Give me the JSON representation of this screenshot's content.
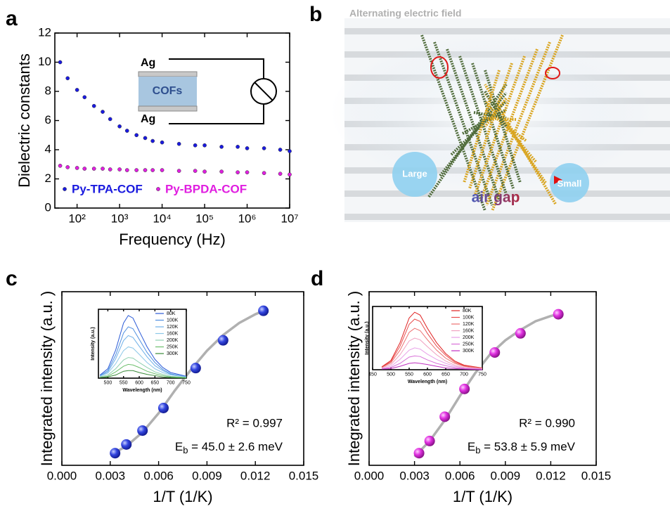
{
  "chart_data": [
    {
      "type": "scatter",
      "label": "a",
      "xscale": "log",
      "xlabel": "Frequency (Hz)",
      "ylabel": "Dielectric constants",
      "xlim": [
        30,
        10000000
      ],
      "ylim": [
        0,
        12
      ],
      "xticks": [
        {
          "value": 100,
          "label": "10²"
        },
        {
          "value": 1000,
          "label": "10³"
        },
        {
          "value": 10000,
          "label": "10⁴"
        },
        {
          "value": 100000,
          "label": "10⁵"
        },
        {
          "value": 1000000,
          "label": "10⁶"
        },
        {
          "value": 10000000,
          "label": "10⁷"
        }
      ],
      "yticks": [
        0,
        2,
        4,
        6,
        8,
        10,
        12
      ],
      "x": [
        40,
        60,
        100,
        150,
        250,
        400,
        600,
        1000,
        1500,
        2500,
        4000,
        6000,
        10000,
        25000,
        60000,
        100000,
        250000,
        600000,
        1000000,
        2500000,
        6000000,
        10000000
      ],
      "series": [
        {
          "name": "Py-TPA-COF",
          "color": "#1a1adf",
          "values": [
            10.0,
            8.9,
            8.1,
            7.6,
            7.0,
            6.6,
            6.1,
            5.6,
            5.3,
            5.0,
            4.8,
            4.6,
            4.5,
            4.4,
            4.3,
            4.3,
            4.2,
            4.2,
            4.1,
            4.1,
            4.0,
            3.9
          ]
        },
        {
          "name": "Py-BPDA-COF",
          "color": "#e01ee0",
          "values": [
            2.9,
            2.8,
            2.75,
            2.7,
            2.7,
            2.7,
            2.65,
            2.65,
            2.6,
            2.6,
            2.6,
            2.6,
            2.6,
            2.55,
            2.55,
            2.5,
            2.5,
            2.45,
            2.45,
            2.4,
            2.35,
            2.3
          ]
        }
      ],
      "legend": "lower left",
      "annotations": [
        "Ag",
        "COFs",
        "Ag"
      ]
    },
    {
      "type": "scatter",
      "label": "c",
      "xlabel": "1/T (1/K)",
      "ylabel": "Integrated intensity (a.u. )",
      "xlim": [
        0,
        0.015
      ],
      "ylim": [
        0,
        1
      ],
      "xticks": [
        {
          "value": 0,
          "label": "0.000"
        },
        {
          "value": 0.003,
          "label": "0.003"
        },
        {
          "value": 0.006,
          "label": "0.006"
        },
        {
          "value": 0.009,
          "label": "0.009"
        },
        {
          "value": 0.012,
          "label": "0.012"
        },
        {
          "value": 0.015,
          "label": "0.015"
        }
      ],
      "x": [
        0.0033,
        0.004,
        0.005,
        0.0063,
        0.0083,
        0.01,
        0.0125
      ],
      "series": [
        {
          "color": "#1f35d6",
          "values": [
            0.07,
            0.12,
            0.2,
            0.33,
            0.56,
            0.72,
            0.89
          ]
        }
      ],
      "fit": {
        "color": "#b0b0b0",
        "x": [
          0.003,
          0.004,
          0.005,
          0.006,
          0.007,
          0.008,
          0.009,
          0.01,
          0.011,
          0.012,
          0.0125
        ],
        "values": [
          0.06,
          0.11,
          0.19,
          0.3,
          0.43,
          0.55,
          0.66,
          0.75,
          0.82,
          0.87,
          0.89
        ]
      },
      "r2": "R² = 0.997",
      "eb": {
        "symbol": "E",
        "sub": "b",
        "text": " = 45.0 ± 2.6 meV"
      },
      "inset": {
        "type": "line",
        "xlabel": "Wavelength (nm)",
        "ylabel": "Intensity (a.u.)",
        "xlim": [
          470,
          750
        ],
        "ylim": [
          0,
          1.1
        ],
        "xticks": [
          500,
          550,
          600,
          650,
          700,
          750
        ],
        "x": [
          475,
          500,
          525,
          550,
          565,
          580,
          600,
          625,
          650,
          675,
          700,
          750
        ],
        "series": [
          {
            "name": "80K",
            "color": "#2b5bd7",
            "values": [
              0.05,
              0.15,
              0.45,
              0.88,
              1.0,
              0.96,
              0.75,
              0.5,
              0.3,
              0.17,
              0.09,
              0.03
            ]
          },
          {
            "name": "100K",
            "color": "#4f8fe0",
            "values": [
              0.04,
              0.12,
              0.37,
              0.72,
              0.82,
              0.79,
              0.62,
              0.41,
              0.25,
              0.14,
              0.07,
              0.02
            ]
          },
          {
            "name": "120K",
            "color": "#6fb0e8",
            "values": [
              0.03,
              0.1,
              0.31,
              0.6,
              0.68,
              0.65,
              0.51,
              0.34,
              0.2,
              0.12,
              0.06,
              0.02
            ]
          },
          {
            "name": "160K",
            "color": "#8cc7e8",
            "values": [
              0.03,
              0.08,
              0.23,
              0.44,
              0.5,
              0.48,
              0.38,
              0.25,
              0.15,
              0.09,
              0.05,
              0.02
            ]
          },
          {
            "name": "200K",
            "color": "#8fd0b0",
            "values": [
              0.02,
              0.05,
              0.15,
              0.29,
              0.33,
              0.32,
              0.25,
              0.17,
              0.1,
              0.06,
              0.03,
              0.01
            ]
          },
          {
            "name": "250K",
            "color": "#6cbf6c",
            "values": [
              0.01,
              0.03,
              0.1,
              0.19,
              0.22,
              0.21,
              0.17,
              0.11,
              0.07,
              0.04,
              0.02,
              0.01
            ]
          },
          {
            "name": "300K",
            "color": "#3a8a3a",
            "values": [
              0.01,
              0.02,
              0.05,
              0.11,
              0.12,
              0.12,
              0.09,
              0.06,
              0.04,
              0.02,
              0.01,
              0
            ]
          }
        ]
      }
    },
    {
      "type": "scatter",
      "label": "d",
      "xlabel": "1/T (1/K)",
      "ylabel": "Integrated intensity (a.u. )",
      "xlim": [
        0,
        0.015
      ],
      "ylim": [
        0,
        1
      ],
      "xticks": [
        {
          "value": 0,
          "label": "0.000"
        },
        {
          "value": 0.003,
          "label": "0.003"
        },
        {
          "value": 0.006,
          "label": "0.006"
        },
        {
          "value": 0.009,
          "label": "0.009"
        },
        {
          "value": 0.012,
          "label": "0.012"
        },
        {
          "value": 0.015,
          "label": "0.015"
        }
      ],
      "x": [
        0.0033,
        0.004,
        0.005,
        0.0063,
        0.0083,
        0.01,
        0.0125
      ],
      "series": [
        {
          "color": "#d21fd2",
          "values": [
            0.07,
            0.14,
            0.28,
            0.44,
            0.65,
            0.76,
            0.87
          ]
        }
      ],
      "fit": {
        "color": "#b0b0b0",
        "x": [
          0.003,
          0.004,
          0.005,
          0.006,
          0.007,
          0.008,
          0.009,
          0.01,
          0.011,
          0.012,
          0.0125
        ],
        "values": [
          0.05,
          0.14,
          0.26,
          0.4,
          0.53,
          0.64,
          0.72,
          0.78,
          0.83,
          0.86,
          0.87
        ]
      },
      "r2": "R² = 0.990",
      "eb": {
        "symbol": "E",
        "sub": "b",
        "text": " = 53.8 ± 5.9 meV"
      },
      "inset": {
        "type": "line",
        "xlabel": "Wavelength (nm)",
        "ylabel": "Intensity (a.u.)",
        "xlim": [
          450,
          750
        ],
        "ylim": [
          0,
          1.1
        ],
        "xticks": [
          450,
          500,
          550,
          600,
          650,
          700,
          750
        ],
        "x": [
          475,
          500,
          525,
          550,
          565,
          580,
          600,
          625,
          650,
          675,
          700,
          750
        ],
        "series": [
          {
            "name": "80K",
            "color": "#e02020",
            "values": [
              0.05,
              0.16,
              0.47,
              0.9,
              1.0,
              0.95,
              0.72,
              0.47,
              0.28,
              0.15,
              0.08,
              0.03
            ]
          },
          {
            "name": "100K",
            "color": "#e84a4a",
            "values": [
              0.04,
              0.14,
              0.41,
              0.79,
              0.88,
              0.84,
              0.63,
              0.41,
              0.25,
              0.13,
              0.07,
              0.03
            ]
          },
          {
            "name": "120K",
            "color": "#ec7070",
            "values": [
              0.04,
              0.12,
              0.34,
              0.65,
              0.72,
              0.68,
              0.52,
              0.34,
              0.2,
              0.11,
              0.06,
              0.02
            ]
          },
          {
            "name": "160K",
            "color": "#f0a0c0",
            "values": [
              0.03,
              0.09,
              0.26,
              0.5,
              0.55,
              0.52,
              0.4,
              0.26,
              0.15,
              0.08,
              0.04,
              0.02
            ]
          },
          {
            "name": "200K",
            "color": "#e8a0e8",
            "values": [
              0.02,
              0.06,
              0.18,
              0.34,
              0.38,
              0.36,
              0.27,
              0.18,
              0.11,
              0.06,
              0.03,
              0.01
            ]
          },
          {
            "name": "250K",
            "color": "#d870d8",
            "values": [
              0.01,
              0.04,
              0.11,
              0.22,
              0.24,
              0.23,
              0.17,
              0.11,
              0.07,
              0.04,
              0.02,
              0.01
            ]
          },
          {
            "name": "300K",
            "color": "#c030c0",
            "values": [
              0.01,
              0.02,
              0.06,
              0.11,
              0.12,
              0.11,
              0.09,
              0.06,
              0.03,
              0.02,
              0.01,
              0
            ]
          }
        ]
      }
    }
  ],
  "illustration": {
    "label": "b",
    "title": "Alternating electric field",
    "left": "Large",
    "right": "Small",
    "gap": "air gap"
  }
}
